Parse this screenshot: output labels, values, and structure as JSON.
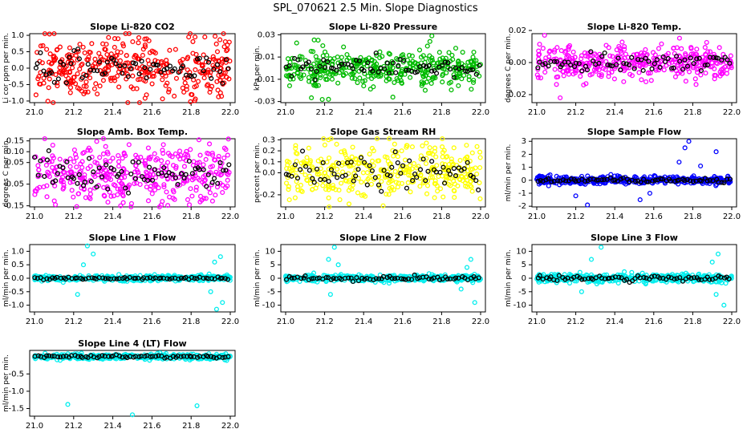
{
  "title": "SPL_070621  2.5 Min. Slope Diagnostics",
  "chart_data": [
    {
      "type": "scatter",
      "title": "Slope Li-820 CO2",
      "ylabel": "Li cor ppm per min.",
      "color": "#ff0000",
      "xlim": [
        21.0,
        22.0
      ],
      "xticks": [
        "21.0",
        "21.2",
        "21.4",
        "21.6",
        "21.8",
        "22.0"
      ],
      "ylim": [
        -1.05,
        1.05
      ],
      "yticks": [
        "-1.0",
        "-0.5",
        "0.0",
        "0.5",
        "1.0"
      ],
      "spread": 0.45,
      "outliers": [
        [
          21.82,
          0.95
        ],
        [
          21.87,
          0.95
        ],
        [
          21.8,
          -0.8
        ],
        [
          21.95,
          -0.75
        ]
      ]
    },
    {
      "type": "scatter",
      "title": "Slope Li-820 Pressure",
      "ylabel": "kPa per min.",
      "color": "#00bb00",
      "xlim": [
        21.0,
        22.0
      ],
      "xticks": [
        "21.0",
        "21.2",
        "21.4",
        "21.6",
        "21.8",
        "22.0"
      ],
      "ylim": [
        -0.031,
        0.031
      ],
      "yticks": [
        "-0.03",
        "-0.01",
        "0.01",
        "0.03"
      ],
      "spread": 0.008,
      "outliers": [
        [
          21.75,
          0.029
        ],
        [
          21.22,
          -0.028
        ],
        [
          21.55,
          -0.026
        ],
        [
          21.74,
          0.024
        ]
      ]
    },
    {
      "type": "scatter",
      "title": "Slope Li-820 Temp.",
      "ylabel": "degrees C per min.",
      "color": "#ff00ff",
      "xlim": [
        21.0,
        22.0
      ],
      "xticks": [
        "21.0",
        "21.2",
        "21.4",
        "21.6",
        "21.8",
        "22.0"
      ],
      "ylim": [
        -0.025,
        0.018
      ],
      "yticks": [
        "-0.02",
        "0.00",
        "0.02"
      ],
      "spread": 0.005,
      "outliers": [
        [
          21.04,
          0.017
        ],
        [
          21.12,
          -0.022
        ],
        [
          21.24,
          -0.014
        ],
        [
          21.56,
          -0.012
        ]
      ]
    },
    {
      "type": "scatter",
      "title": "Slope Amb. Box Temp.",
      "ylabel": "degrees C per min.",
      "color": "#ff00ff",
      "xlim": [
        21.0,
        22.0
      ],
      "xticks": [
        "21.0",
        "21.2",
        "21.4",
        "21.6",
        "21.8",
        "22.0"
      ],
      "ylim": [
        -0.155,
        0.16
      ],
      "yticks": [
        "-0.15",
        "-0.05",
        "0.05",
        "0.10",
        "0.15"
      ],
      "spread": 0.07,
      "outliers": [
        [
          21.84,
          0.155
        ],
        [
          21.44,
          -0.15
        ]
      ]
    },
    {
      "type": "scatter",
      "title": "Slope Gas Stream RH",
      "ylabel": "percent per min.",
      "color": "#ffff00",
      "xlim": [
        21.0,
        22.0
      ],
      "xticks": [
        "21.0",
        "21.2",
        "21.4",
        "21.6",
        "21.8",
        "22.0"
      ],
      "ylim": [
        -0.31,
        0.31
      ],
      "yticks": [
        "-0.2",
        "0.0",
        "0.1",
        "0.2",
        "0.3"
      ],
      "spread": 0.12,
      "outliers": [
        [
          21.22,
          0.3
        ],
        [
          21.5,
          -0.3
        ]
      ]
    },
    {
      "type": "scatter",
      "title": "Slope Sample Flow",
      "ylabel": "ml/min per min.",
      "color": "#0000ff",
      "xlim": [
        21.0,
        22.0
      ],
      "xticks": [
        "21.0",
        "21.2",
        "21.4",
        "21.6",
        "21.8",
        "22.0"
      ],
      "ylim": [
        -2.05,
        3.2
      ],
      "yticks": [
        "-2",
        "-1",
        "0",
        "1",
        "2",
        "3"
      ],
      "spread": 0.15,
      "outliers": [
        [
          21.76,
          2.5
        ],
        [
          21.78,
          3.0
        ],
        [
          21.84,
          1.1
        ],
        [
          21.73,
          1.4
        ],
        [
          21.92,
          2.2
        ],
        [
          21.2,
          -1.2
        ],
        [
          21.58,
          -1.0
        ],
        [
          21.26,
          -1.9
        ],
        [
          21.53,
          -1.5
        ]
      ]
    },
    {
      "type": "scatter",
      "title": "Slope Line 1 Flow",
      "ylabel": "ml/min per min.",
      "color": "#00eeee",
      "xlim": [
        21.0,
        22.0
      ],
      "xticks": [
        "21.0",
        "21.2",
        "21.4",
        "21.6",
        "21.8",
        "22.0"
      ],
      "ylim": [
        -1.25,
        1.25
      ],
      "yticks": [
        "-1.0",
        "-0.5",
        "0.0",
        "0.5",
        "1.0"
      ],
      "spread": 0.05,
      "outliers": [
        [
          21.27,
          1.2
        ],
        [
          21.3,
          0.9
        ],
        [
          21.25,
          0.5
        ],
        [
          21.92,
          0.6
        ],
        [
          21.95,
          0.8
        ],
        [
          21.93,
          -1.15
        ],
        [
          21.22,
          -0.6
        ],
        [
          21.9,
          -0.5
        ],
        [
          21.96,
          -0.9
        ]
      ]
    },
    {
      "type": "scatter",
      "title": "Slope Line 2 Flow",
      "ylabel": "ml/min per min.",
      "color": "#00eeee",
      "xlim": [
        21.0,
        22.0
      ],
      "xticks": [
        "21.0",
        "21.2",
        "21.4",
        "21.6",
        "21.8",
        "22.0"
      ],
      "ylim": [
        -12.5,
        12.5
      ],
      "yticks": [
        "-10",
        "-5",
        "0",
        "5",
        "10"
      ],
      "spread": 0.6,
      "outliers": [
        [
          21.25,
          11.5
        ],
        [
          21.22,
          7
        ],
        [
          21.27,
          5
        ],
        [
          21.95,
          7
        ],
        [
          21.93,
          4
        ],
        [
          21.23,
          -6
        ],
        [
          21.97,
          -9
        ],
        [
          21.9,
          -4
        ]
      ]
    },
    {
      "type": "scatter",
      "title": "Slope Line 3 Flow",
      "ylabel": "ml/min per min.",
      "color": "#00eeee",
      "xlim": [
        21.0,
        22.0
      ],
      "xticks": [
        "21.0",
        "21.2",
        "21.4",
        "21.6",
        "21.8",
        "22.0"
      ],
      "ylim": [
        -12.5,
        12.5
      ],
      "yticks": [
        "-10",
        "-5",
        "0",
        "5",
        "10"
      ],
      "spread": 0.8,
      "outliers": [
        [
          21.33,
          11.5
        ],
        [
          21.28,
          7
        ],
        [
          21.93,
          9
        ],
        [
          21.9,
          6
        ],
        [
          21.23,
          -5
        ],
        [
          21.96,
          -10
        ],
        [
          21.92,
          -6
        ]
      ]
    },
    {
      "type": "scatter",
      "title": "Slope Line 4 (LT) Flow",
      "ylabel": "ml/min per min.",
      "color": "#00eeee",
      "xlim": [
        21.0,
        22.0
      ],
      "xticks": [
        "21.0",
        "21.2",
        "21.4",
        "21.6",
        "21.8",
        "22.0"
      ],
      "ylim": [
        -1.72,
        0.18
      ],
      "yticks": [
        "-1.5",
        "-1.0",
        "-0.5"
      ],
      "spread": 0.04,
      "outliers": [
        [
          21.17,
          -1.38
        ],
        [
          21.83,
          -1.42
        ],
        [
          21.5,
          -1.68
        ]
      ]
    }
  ]
}
